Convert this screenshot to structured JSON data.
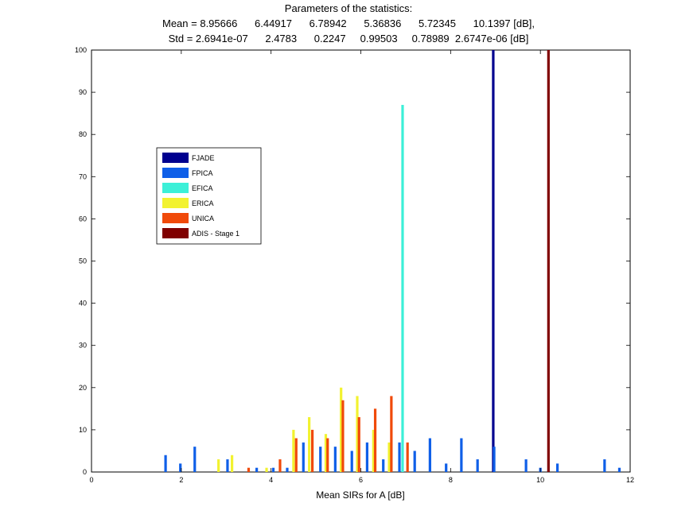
{
  "chart_data": {
    "type": "bar",
    "title": "Parameters of the statistics:",
    "subtitle_mean": "Mean = 8.95666      6.44917      6.78942      5.36836      5.72345      10.1397 [dB],",
    "subtitle_std": "Std = 2.6941e-07      2.4783      0.2247     0.99503     0.78989  2.6747e-06 [dB]",
    "xlabel": "Mean SIRs for A [dB]",
    "ylabel": "",
    "xlim": [
      0,
      12
    ],
    "ylim": [
      0,
      100
    ],
    "xticks": [
      "0",
      "2",
      "4",
      "6",
      "8",
      "10",
      "12"
    ],
    "yticks": [
      "0",
      "10",
      "20",
      "30",
      "40",
      "50",
      "60",
      "70",
      "80",
      "90",
      "100"
    ],
    "grid": false,
    "legend_position": "left",
    "series": [
      {
        "name": "FJADE",
        "color": "#00008f",
        "points": [
          [
            8.95,
            100
          ]
        ]
      },
      {
        "name": "FPICA",
        "color": "#0f5fe8",
        "points": [
          [
            1.65,
            4
          ],
          [
            1.98,
            2
          ],
          [
            2.3,
            6
          ],
          [
            3.03,
            3
          ],
          [
            3.68,
            1
          ],
          [
            4.05,
            1
          ],
          [
            4.36,
            1
          ],
          [
            4.72,
            7
          ],
          [
            5.1,
            6
          ],
          [
            5.43,
            6
          ],
          [
            5.8,
            5
          ],
          [
            6.14,
            7
          ],
          [
            6.5,
            3
          ],
          [
            6.86,
            7
          ],
          [
            7.2,
            5
          ],
          [
            7.54,
            8
          ],
          [
            7.9,
            2
          ],
          [
            8.24,
            8
          ],
          [
            8.6,
            3
          ],
          [
            8.97,
            6
          ],
          [
            9.68,
            3
          ],
          [
            10.0,
            1
          ],
          [
            10.38,
            2
          ],
          [
            11.43,
            3
          ],
          [
            11.76,
            1
          ]
        ]
      },
      {
        "name": "EFICA",
        "color": "#3cf0d8",
        "points": [
          [
            6.93,
            87
          ]
        ]
      },
      {
        "name": "ERICA",
        "color": "#f2f230",
        "points": [
          [
            2.83,
            3
          ],
          [
            3.13,
            4
          ],
          [
            3.9,
            1
          ],
          [
            4.5,
            10
          ],
          [
            4.85,
            13
          ],
          [
            5.22,
            9
          ],
          [
            5.56,
            20
          ],
          [
            5.92,
            18
          ],
          [
            6.28,
            10
          ],
          [
            6.63,
            7
          ]
        ]
      },
      {
        "name": "UNICA",
        "color": "#f04a0a",
        "points": [
          [
            3.5,
            1
          ],
          [
            4.2,
            3
          ],
          [
            4.56,
            8
          ],
          [
            4.92,
            10
          ],
          [
            5.26,
            8
          ],
          [
            5.6,
            17
          ],
          [
            5.96,
            13
          ],
          [
            6.32,
            15
          ],
          [
            6.68,
            18
          ],
          [
            7.04,
            7
          ]
        ]
      },
      {
        "name": "ADIS - Stage 1",
        "color": "#800000",
        "points": [
          [
            10.18,
            100
          ]
        ]
      }
    ]
  }
}
